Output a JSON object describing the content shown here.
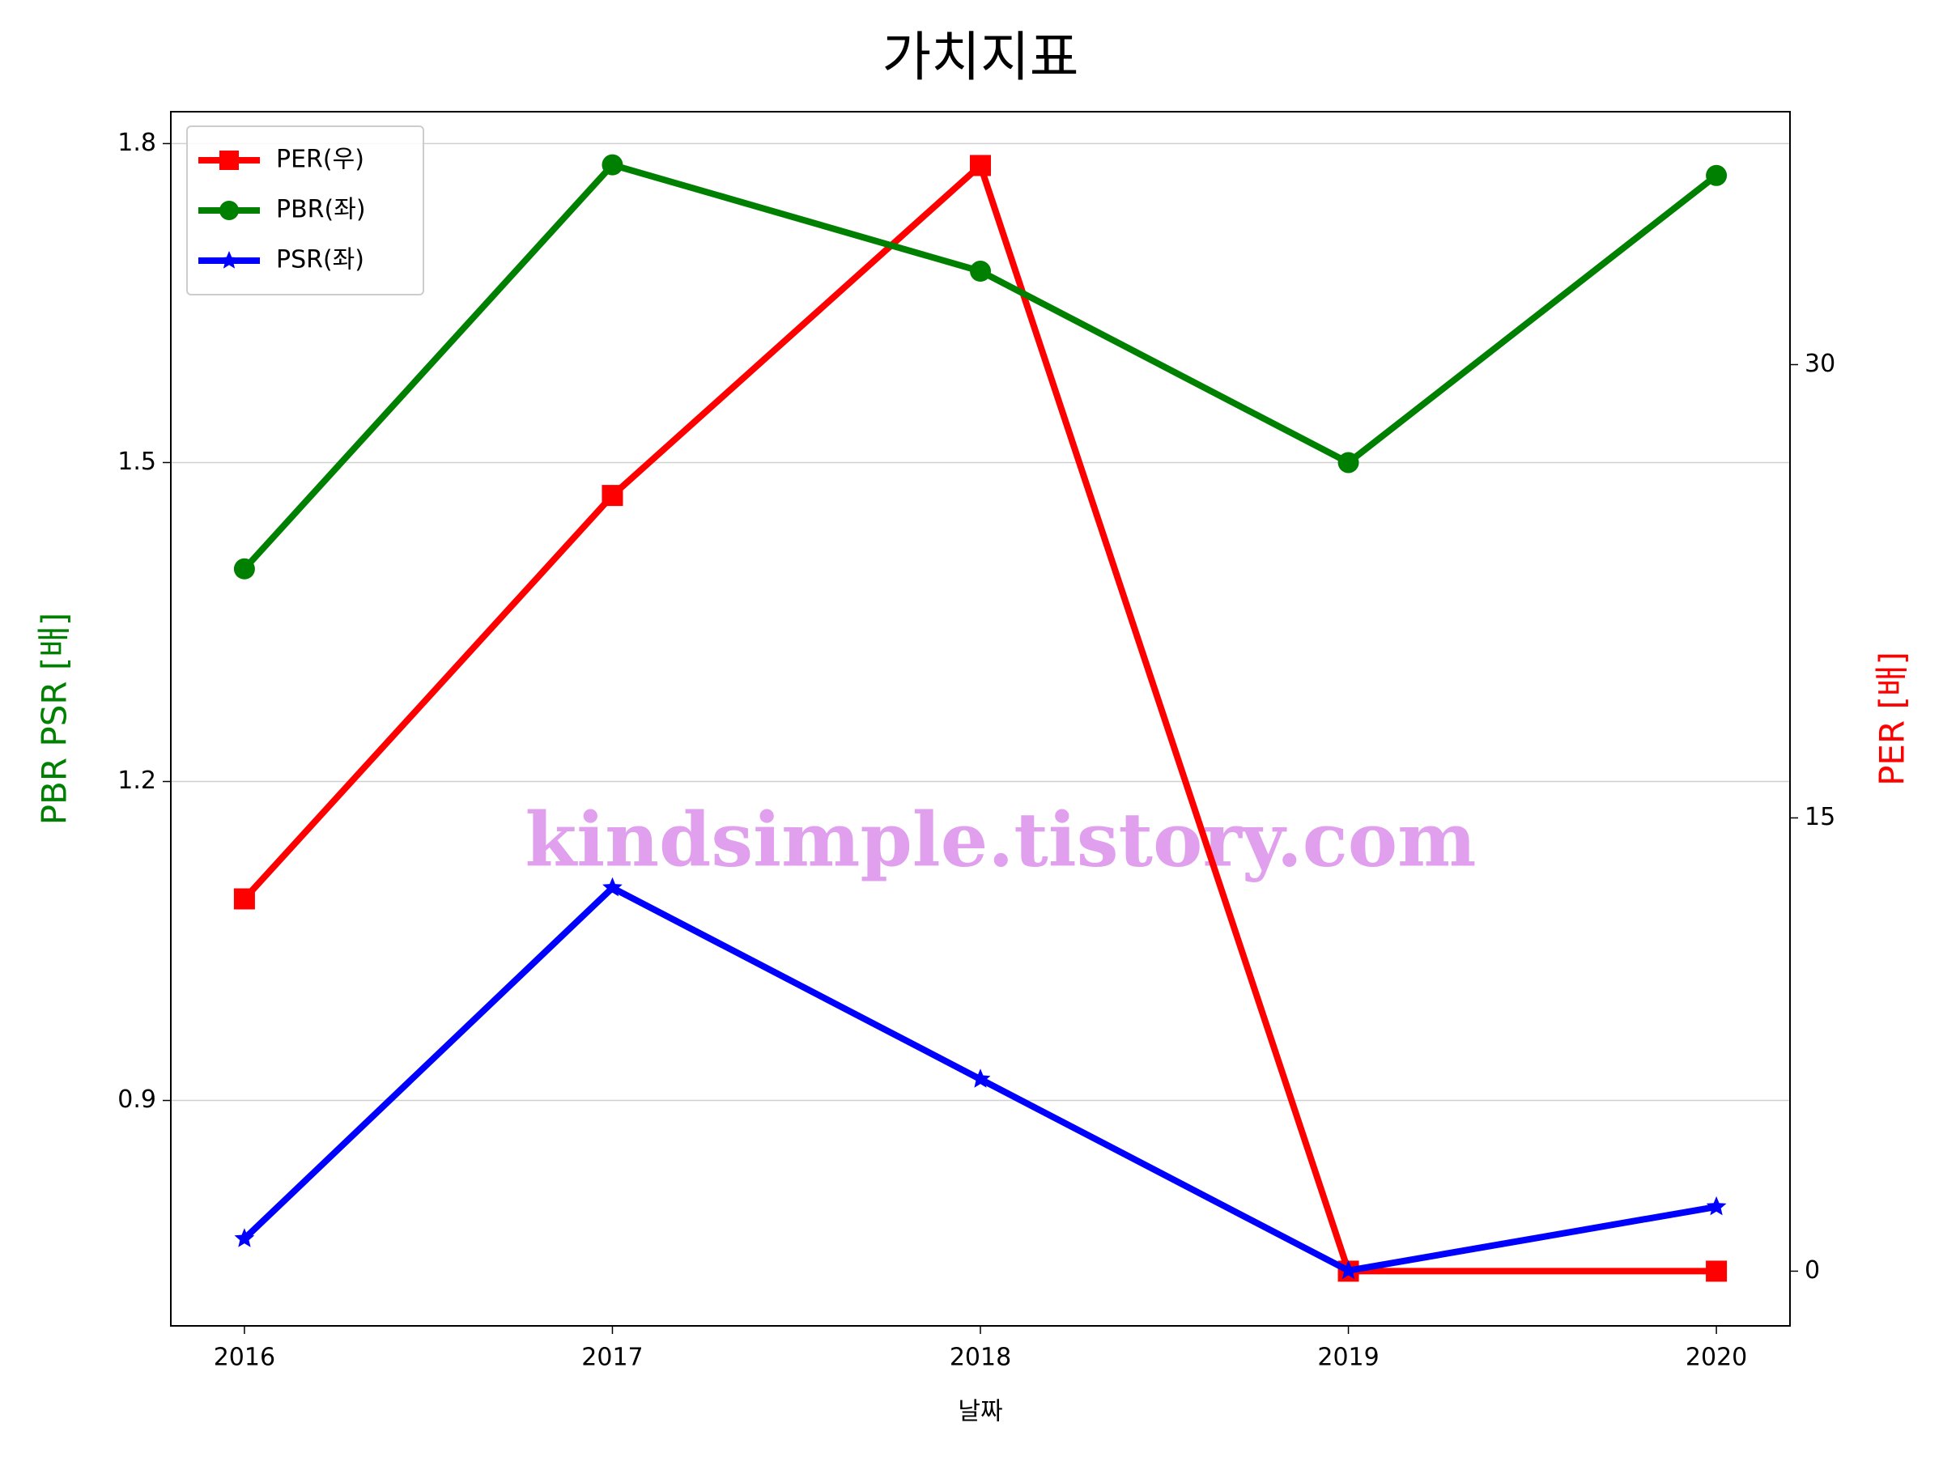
{
  "chart_data": {
    "type": "line",
    "title": "가치지표",
    "xlabel": "날짜",
    "ylabel": "PBR PSR [배]",
    "y2label": "PER [배]",
    "watermark": "kindsimple.tistory.com",
    "x": [
      2016,
      2017,
      2018,
      2019,
      2020
    ],
    "xlim": [
      2015.8,
      2020.2
    ],
    "xticks": [
      2016,
      2017,
      2018,
      2019,
      2020
    ],
    "ylim": [
      0.688,
      1.83
    ],
    "yticks": [
      0.9,
      1.2,
      1.5,
      1.8
    ],
    "y2lim": [
      -1.81,
      38.37
    ],
    "y2ticks": [
      0,
      15,
      30
    ],
    "grid": true,
    "legend": "upper left",
    "series": [
      {
        "name": "PER(우)",
        "color": "#ff0000",
        "marker": "square",
        "axis": "y2",
        "values": [
          12.32,
          25.67,
          36.59,
          0,
          0
        ]
      },
      {
        "name": "PBR(좌)",
        "color": "#008000",
        "marker": "circle",
        "values": [
          1.4,
          1.78,
          1.68,
          1.5,
          1.77
        ]
      },
      {
        "name": "PSR(좌)",
        "color": "#0000ff",
        "marker": "star",
        "values": [
          0.77,
          1.1,
          0.92,
          0.74,
          0.8
        ]
      }
    ]
  }
}
